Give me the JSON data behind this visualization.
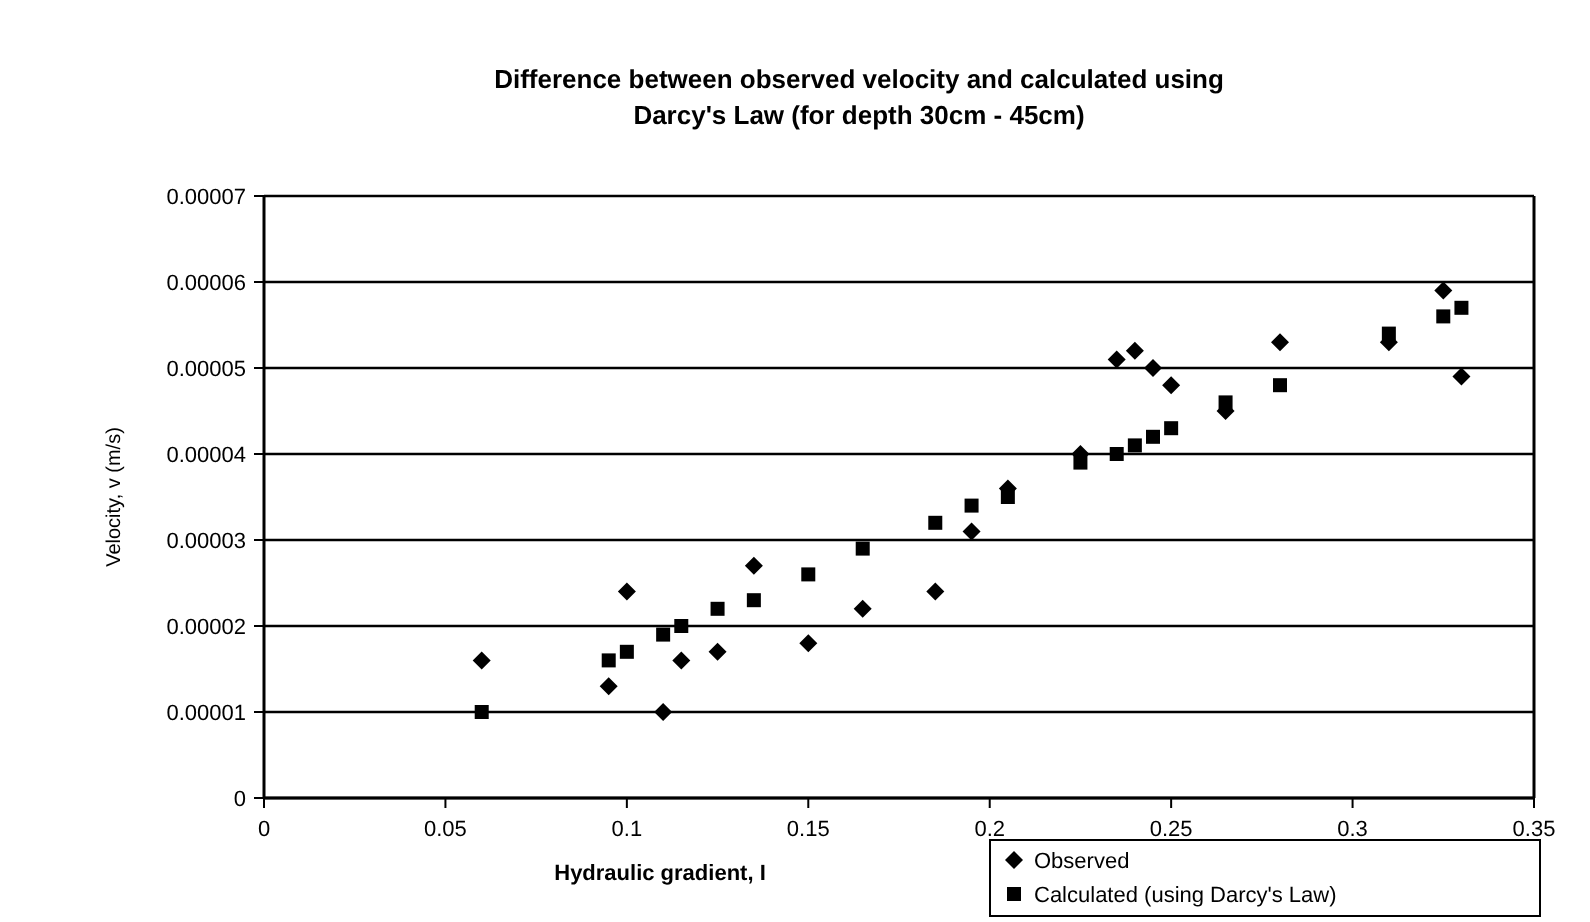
{
  "chart_data": {
    "type": "scatter",
    "title": "Difference between observed velocity and calculated using Darcy's Law (for depth 30cm - 45cm)",
    "xlabel": "Hydraulic gradient, I",
    "ylabel": "Velocity, v (m/s)",
    "xlim": [
      0,
      0.35
    ],
    "xticks": [
      0,
      0.05,
      0.1,
      0.15,
      0.2,
      0.25,
      0.3,
      0.35
    ],
    "ylim": [
      0,
      7e-05
    ],
    "yticks": [
      0,
      {
        "value": 1e-05,
        "label": "0.00001"
      },
      {
        "value": 2e-05,
        "label": "0.00002"
      },
      {
        "value": 3e-05,
        "label": "0.00003"
      },
      {
        "value": 4e-05,
        "label": "0.00004"
      },
      {
        "value": 5e-05,
        "label": "0.00005"
      },
      {
        "value": 6e-05,
        "label": "0.00006"
      },
      {
        "value": 7e-05,
        "label": "0.00007"
      }
    ],
    "grid": "y",
    "legend": "bottom right",
    "series": [
      {
        "name": "Observed",
        "color": "#000000",
        "marker": "diamond",
        "x": [
          0.06,
          0.095,
          0.1,
          0.11,
          0.115,
          0.125,
          0.135,
          0.15,
          0.165,
          0.185,
          0.195,
          0.205,
          0.225,
          0.235,
          0.24,
          0.245,
          0.25,
          0.265,
          0.28,
          0.31,
          0.325,
          0.33
        ],
        "values": [
          1.6e-05,
          1.3e-05,
          2.4e-05,
          1e-05,
          1.6e-05,
          1.7e-05,
          2.7e-05,
          1.8e-05,
          2.2e-05,
          2.4e-05,
          3.1e-05,
          3.6e-05,
          4e-05,
          5.1e-05,
          5.2e-05,
          5e-05,
          4.8e-05,
          4.5e-05,
          5.3e-05,
          5.3e-05,
          5.9e-05,
          4.9e-05
        ]
      },
      {
        "name": "Calculated (using Darcy's Law)",
        "color": "#000000",
        "marker": "square",
        "x": [
          0.06,
          0.095,
          0.1,
          0.11,
          0.115,
          0.125,
          0.135,
          0.15,
          0.165,
          0.185,
          0.195,
          0.205,
          0.225,
          0.235,
          0.24,
          0.245,
          0.25,
          0.265,
          0.28,
          0.31,
          0.325,
          0.33
        ],
        "values": [
          1e-05,
          1.6e-05,
          1.7e-05,
          1.9e-05,
          2e-05,
          2.2e-05,
          2.3e-05,
          2.6e-05,
          2.9e-05,
          3.2e-05,
          3.4e-05,
          3.5e-05,
          3.9e-05,
          4e-05,
          4.1e-05,
          4.2e-05,
          4.3e-05,
          4.6e-05,
          4.8e-05,
          5.4e-05,
          5.6e-05,
          5.7e-05
        ]
      }
    ]
  }
}
